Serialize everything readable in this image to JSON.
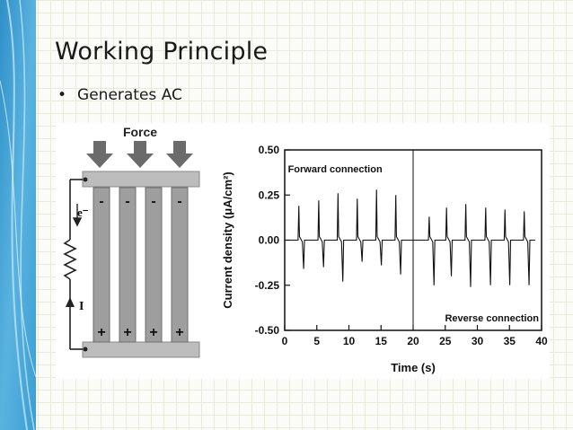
{
  "slide": {
    "title": "Working Principle",
    "bullets": [
      "Generates AC"
    ]
  },
  "colors": {
    "sidebar": "#4aa6d6",
    "nanowire": "#9e9e9e",
    "plate": "#bdbdbd",
    "arrow": "#666666"
  },
  "schematic": {
    "force_label": "Force",
    "electron_label": "e⁻",
    "current_label": "I",
    "top_charges": [
      "-",
      "-",
      "-",
      "-"
    ],
    "bottom_charges": [
      "+",
      "+",
      "+",
      "+"
    ],
    "icons": [
      "force-arrow-icon",
      "resistor-icon",
      "current-arrow-icon"
    ]
  },
  "chart_data": {
    "type": "line",
    "title": "",
    "xlabel": "Time (s)",
    "ylabel": "Current density (μA/cm²)",
    "xlim": [
      0,
      40
    ],
    "ylim": [
      -0.5,
      0.5
    ],
    "x_ticks": [
      "0",
      "5",
      "10",
      "15",
      "20",
      "25",
      "30",
      "35",
      "40"
    ],
    "y_ticks": [
      "0.50",
      "0.25",
      "0.00",
      "-0.25",
      "-0.50"
    ],
    "grid": false,
    "divider_x": 20,
    "annotations": [
      "Forward connection",
      "Reverse connection"
    ],
    "series": [
      {
        "pulses": [
          {
            "t": 2.2,
            "pos": 0.19,
            "neg": -0.16
          },
          {
            "t": 5.3,
            "pos": 0.22,
            "neg": -0.15
          },
          {
            "t": 8.3,
            "pos": 0.26,
            "neg": -0.23
          },
          {
            "t": 11.3,
            "pos": 0.23,
            "neg": -0.12
          },
          {
            "t": 14.3,
            "pos": 0.28,
            "neg": -0.14
          },
          {
            "t": 17.3,
            "pos": 0.25,
            "neg": -0.19
          },
          {
            "t": 22.5,
            "pos": 0.13,
            "neg": -0.25
          },
          {
            "t": 25.2,
            "pos": 0.18,
            "neg": -0.2
          },
          {
            "t": 28.2,
            "pos": 0.2,
            "neg": -0.26
          },
          {
            "t": 31.3,
            "pos": 0.18,
            "neg": -0.25
          },
          {
            "t": 34.3,
            "pos": 0.17,
            "neg": -0.25
          },
          {
            "t": 37.3,
            "pos": 0.16,
            "neg": -0.25
          }
        ]
      }
    ]
  }
}
